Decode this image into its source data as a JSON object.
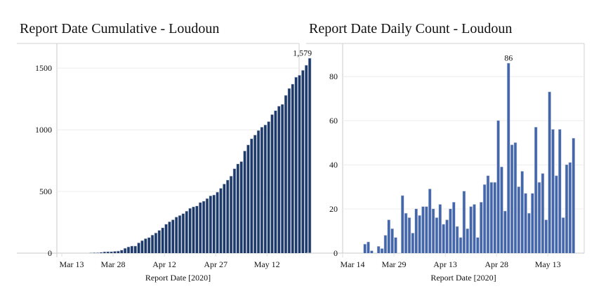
{
  "chart_data": [
    {
      "type": "bar",
      "title": "Report Date Cumulative - Loudoun",
      "xlabel": "Report Date [2020]",
      "ylabel": "",
      "ylim": [
        0,
        1700
      ],
      "yticks": [
        "0",
        "500",
        "1000",
        "1500"
      ],
      "ytick_values": [
        0,
        500,
        1000,
        1500
      ],
      "xticks": [
        "Mar 13",
        "Mar 28",
        "Apr 12",
        "Apr 27",
        "May 12"
      ],
      "xtick_day_index": [
        0,
        15,
        30,
        45,
        60
      ],
      "start_date": "Mar 13",
      "max_label": "1,579",
      "bar_color": "#1b3a6b",
      "grid": true,
      "values": [
        0,
        0,
        0,
        0,
        1,
        2,
        2,
        5,
        9,
        10,
        10,
        13,
        15,
        23,
        38,
        49,
        56,
        56,
        82,
        100,
        116,
        125,
        145,
        162,
        183,
        204,
        233,
        253,
        269,
        291,
        304,
        319,
        339,
        362,
        374,
        381,
        409,
        420,
        441,
        463,
        470,
        493,
        524,
        559,
        591,
        623,
        683,
        722,
        741,
        827,
        876,
        926,
        956,
        993,
        1020,
        1038,
        1065,
        1122,
        1154,
        1190,
        1205,
        1278,
        1334,
        1369,
        1425,
        1441,
        1481,
        1522,
        1579
      ],
      "first_bar_day_index": 4
    },
    {
      "type": "bar",
      "title": "Report Date Daily Count - Loudoun",
      "xlabel": "Report Date [2020]",
      "ylabel": "",
      "ylim": [
        0,
        95
      ],
      "yticks": [
        "0",
        "20",
        "40",
        "60",
        "80"
      ],
      "ytick_values": [
        0,
        20,
        40,
        60,
        80
      ],
      "xticks": [
        "Mar 14",
        "Mar 29",
        "Apr 13",
        "Apr 28",
        "May 13"
      ],
      "xtick_day_index": [
        0,
        15,
        30,
        45,
        60
      ],
      "start_date": "Mar 14",
      "max_label": "86",
      "bar_color": "#4166ae",
      "grid": true,
      "values": [
        4,
        5,
        1,
        0,
        3,
        2,
        8,
        15,
        11,
        7,
        0,
        26,
        18,
        16,
        9,
        20,
        17,
        21,
        21,
        29,
        20,
        16,
        22,
        13,
        15,
        20,
        23,
        12,
        7,
        28,
        11,
        21,
        22,
        7,
        23,
        31,
        35,
        32,
        32,
        60,
        39,
        19,
        86,
        49,
        50,
        30,
        37,
        27,
        18,
        27,
        57,
        32,
        36,
        15,
        73,
        56,
        35,
        56,
        16,
        40,
        41,
        52
      ],
      "first_bar_day_index": 6
    }
  ]
}
